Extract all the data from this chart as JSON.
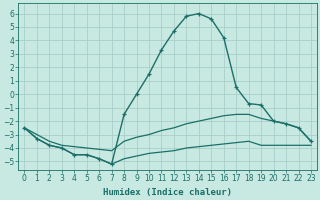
{
  "xlabel": "Humidex (Indice chaleur)",
  "bg": "#c8e8e2",
  "grid_color": "#aacfc8",
  "lc": "#1a7068",
  "xlim": [
    -0.5,
    23.5
  ],
  "ylim": [
    -5.6,
    6.8
  ],
  "xticks": [
    0,
    1,
    2,
    3,
    4,
    5,
    6,
    7,
    8,
    9,
    10,
    11,
    12,
    13,
    14,
    15,
    16,
    17,
    18,
    19,
    20,
    21,
    22,
    23
  ],
  "yticks": [
    -5,
    -4,
    -3,
    -2,
    -1,
    0,
    1,
    2,
    3,
    4,
    5,
    6
  ],
  "peak_x": [
    0,
    1,
    2,
    3,
    4,
    5,
    6,
    7,
    8,
    9,
    10,
    11,
    12,
    13,
    14,
    15,
    16,
    17,
    18,
    19,
    20,
    21,
    22,
    23
  ],
  "peak_y": [
    -2.5,
    -3.3,
    -3.8,
    -4.0,
    -4.5,
    -4.5,
    -4.8,
    -5.2,
    -1.5,
    0.0,
    1.5,
    3.3,
    4.7,
    5.8,
    6.0,
    5.6,
    4.2,
    0.5,
    -0.7,
    -0.8,
    -2.0,
    -2.2,
    -2.5,
    -3.5
  ],
  "mid_x": [
    0,
    1,
    2,
    3,
    4,
    5,
    6,
    7,
    8,
    9,
    10,
    11,
    12,
    13,
    14,
    15,
    16,
    17,
    18,
    19,
    20,
    21,
    22,
    23
  ],
  "mid_y": [
    -2.5,
    -3.0,
    -3.5,
    -3.8,
    -3.9,
    -4.0,
    -4.1,
    -4.2,
    -3.5,
    -3.2,
    -3.0,
    -2.7,
    -2.5,
    -2.2,
    -2.0,
    -1.8,
    -1.6,
    -1.5,
    -1.5,
    -1.8,
    -2.0,
    -2.2,
    -2.5,
    -3.5
  ],
  "bot_x": [
    0,
    1,
    2,
    3,
    4,
    5,
    6,
    7,
    8,
    9,
    10,
    11,
    12,
    13,
    14,
    15,
    16,
    17,
    18,
    19,
    20,
    21,
    22,
    23
  ],
  "bot_y": [
    -2.5,
    -3.3,
    -3.8,
    -4.0,
    -4.5,
    -4.5,
    -4.8,
    -5.2,
    -4.8,
    -4.6,
    -4.4,
    -4.3,
    -4.2,
    -4.0,
    -3.9,
    -3.8,
    -3.7,
    -3.6,
    -3.5,
    -3.8,
    -3.8,
    -3.8,
    -3.8,
    -3.8
  ]
}
